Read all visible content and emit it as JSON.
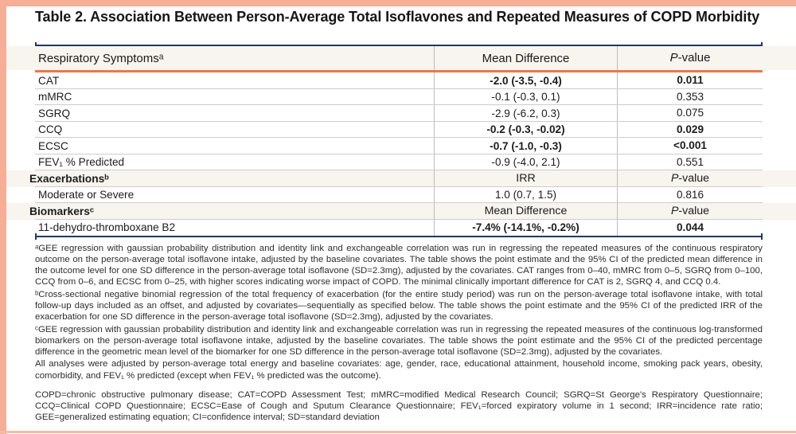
{
  "title": "Table 2. Association Between Person-Average Total Isoflavones and Repeated Measures of COPD Morbidity",
  "colors": {
    "frame_salmon": "#F6AE97",
    "rule_navy": "#1F3864",
    "rule_orange": "#E8794A",
    "band_beige": "#F8F4EE"
  },
  "table": {
    "header": {
      "label": "Respiratory Symptomsᵃ",
      "col2": "Mean Difference",
      "col3": "P-value"
    },
    "rows": [
      {
        "label": "CAT",
        "value": "-2.0 (-3.5, -0.4)",
        "p": "0.011"
      },
      {
        "label": "mMRC",
        "value": "-0.1 (-0.3, 0.1)",
        "p": "0.353"
      },
      {
        "label": "SGRQ",
        "value": "-2.9 (-6.2, 0.3)",
        "p": "0.075"
      },
      {
        "label": "CCQ",
        "value": "-0.2 (-0.3, -0.02)",
        "p": "0.029"
      },
      {
        "label": "ECSC",
        "value": "-0.7 (-1.0, -0.3)",
        "p": "<0.001"
      },
      {
        "label": "FEV₁ % Predicted",
        "value": "-0.9 (-4.0, 2.1)",
        "p": "0.551"
      },
      {
        "label": "Exacerbationsᵇ",
        "value": "IRR",
        "p": "P-value"
      },
      {
        "label": "Moderate or Severe",
        "value": "1.0 (0.7, 1.5)",
        "p": "0.816"
      },
      {
        "label": "Biomarkersᶜ",
        "value": "Mean Difference",
        "p": "P-value"
      },
      {
        "label": "11-dehydro-thromboxane B2",
        "value": "-7.4% (-14.1%, -0.2%)",
        "p": "0.044"
      }
    ]
  },
  "footnotes": {
    "a": "ᵃGEE regression with gaussian probability distribution and identity link and exchangeable correlation was run in regressing the repeated measures of the continuous respiratory outcome on the person-average total isoflavone intake, adjusted by the baseline covariates. The table shows the point estimate and the 95% CI of the predicted mean difference in the outcome level for one SD difference in the person-average total isoflavone (SD=2.3mg), adjusted by the covariates. CAT ranges from 0–40, mMRC from 0–5, SGRQ from 0–100, CCQ from 0–6, and ECSC from 0–25, with higher scores indicating worse impact of COPD. The minimal clinically important difference for CAT is 2, SGRQ 4, and CCQ 0.4.",
    "b": "ᵇCross-sectional negative binomial regression of the total frequency of exacerbation (for the entire study period) was run on the person-average total isoflavone intake, with total follow-up days included as an offset, and adjusted by covariates—sequentially as specified below. The table shows the point estimate and the 95% CI of the predicted IRR of the exacerbation for one SD difference in the person-average total isoflavone (SD=2.3mg), adjusted by the covariates.",
    "c": "ᶜGEE regression with gaussian probability distribution and identity link and exchangeable correlation was run in regressing the repeated measures of the continuous log-transformed biomarkers on the person-average total isoflavone intake, adjusted by the baseline covariates. The table shows the point estimate and the 95% CI of the predicted percentage difference in the geometric mean level of the biomarker for one SD difference in the person-average total isoflavone (SD=2.3mg), adjusted by the covariates.",
    "adjustment": "All analyses were adjusted by person-average total energy and baseline covariates: age, gender, race, educational attainment, household income, smoking pack years, obesity, comorbidity, and FEV₁ % predicted (except when FEV₁ % predicted was the outcome).",
    "abbreviations": "COPD=chronic obstructive pulmonary disease; CAT=COPD Assessment Test; mMRC=modified Medical Research Council; SGRQ=St George's Respiratory Questionnaire; CCQ=Clinical COPD Questionnaire; ECSC=Ease of Cough and Sputum Clearance Questionnaire; FEV₁=forced expiratory volume in 1 second; IRR=incidence rate ratio; GEE=generalized estimating equation; CI=confidence interval; SD=standard deviation"
  }
}
